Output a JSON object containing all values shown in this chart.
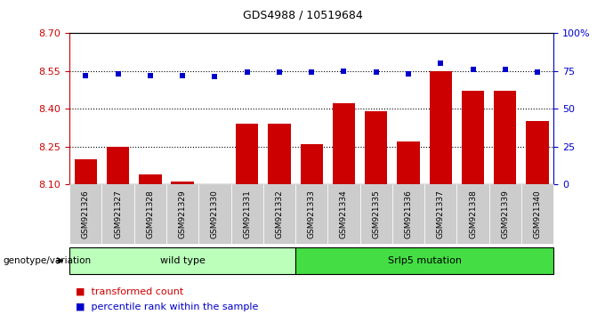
{
  "title": "GDS4988 / 10519684",
  "categories": [
    "GSM921326",
    "GSM921327",
    "GSM921328",
    "GSM921329",
    "GSM921330",
    "GSM921331",
    "GSM921332",
    "GSM921333",
    "GSM921334",
    "GSM921335",
    "GSM921336",
    "GSM921337",
    "GSM921338",
    "GSM921339",
    "GSM921340"
  ],
  "bar_values": [
    8.2,
    8.25,
    8.14,
    8.11,
    8.102,
    8.34,
    8.34,
    8.26,
    8.42,
    8.39,
    8.27,
    8.55,
    8.47,
    8.47,
    8.35
  ],
  "dot_values": [
    72,
    73,
    72,
    72,
    71,
    74,
    74,
    74,
    75,
    74,
    73,
    80,
    76,
    76,
    74
  ],
  "ylim_left": [
    8.1,
    8.7
  ],
  "ylim_right": [
    0,
    100
  ],
  "yticks_left": [
    8.1,
    8.25,
    8.4,
    8.55,
    8.7
  ],
  "yticks_right": [
    0,
    25,
    50,
    75,
    100
  ],
  "ytick_labels_right": [
    "0",
    "25",
    "50",
    "75",
    "100%"
  ],
  "hlines": [
    8.25,
    8.4,
    8.55
  ],
  "bar_color": "#cc0000",
  "dot_color": "#0000cc",
  "group1_label": "wild type",
  "group1_count": 7,
  "group2_label": "Srlp5 mutation",
  "group2_count": 8,
  "group1_color": "#bbffbb",
  "group2_color": "#44dd44",
  "genotype_label": "genotype/variation",
  "legend_bar_label": "transformed count",
  "legend_dot_label": "percentile rank within the sample",
  "tick_label_bg": "#cccccc",
  "bar_width": 0.7,
  "fig_width": 6.8,
  "fig_height": 3.54,
  "dpi": 100
}
